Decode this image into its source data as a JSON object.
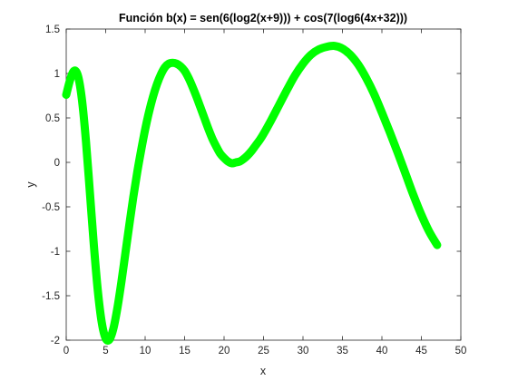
{
  "chart_data": {
    "type": "line",
    "title": "Función b(x) = sen(6(log2(x+9))) + cos(7(log6(4x+32)))",
    "xlabel": "x",
    "ylabel": "y",
    "xlim": [
      0,
      50
    ],
    "ylim": [
      -2,
      1.5
    ],
    "xticks": [
      "0",
      "5",
      "10",
      "15",
      "20",
      "25",
      "30",
      "35",
      "40",
      "45",
      "50"
    ],
    "yticks": [
      "-2",
      "-1.5",
      "-1",
      "-0.5",
      "0",
      "0.5",
      "1",
      "1.5"
    ],
    "grid": false,
    "series": [
      {
        "color": "#00ff00",
        "x": [
          0,
          0.5,
          1,
          1.5,
          2,
          2.5,
          3,
          3.5,
          4,
          4.5,
          5,
          5.5,
          6,
          6.5,
          7,
          7.5,
          8,
          8.5,
          9,
          9.5,
          10,
          10.5,
          11,
          11.5,
          12,
          12.5,
          13,
          13.5,
          14,
          14.5,
          15,
          15.5,
          16,
          16.5,
          17,
          17.5,
          18,
          18.5,
          19,
          19.5,
          20,
          20.5,
          21,
          21.5,
          22,
          22.5,
          23,
          23.5,
          24,
          24.5,
          25,
          26,
          27,
          28,
          29,
          30,
          31,
          32,
          33,
          34,
          35,
          36,
          37,
          38,
          39,
          40,
          41,
          42,
          43,
          44,
          45,
          46,
          47
        ],
        "y": [
          0.76,
          0.93,
          1.03,
          0.97,
          0.7,
          0.24,
          -0.34,
          -0.93,
          -1.44,
          -1.8,
          -1.98,
          -1.99,
          -1.86,
          -1.63,
          -1.34,
          -1.02,
          -0.7,
          -0.39,
          -0.11,
          0.14,
          0.37,
          0.57,
          0.74,
          0.88,
          0.99,
          1.07,
          1.11,
          1.12,
          1.11,
          1.08,
          1.03,
          0.95,
          0.85,
          0.74,
          0.62,
          0.5,
          0.38,
          0.27,
          0.18,
          0.1,
          0.05,
          0.01,
          -0.01,
          0,
          0.01,
          0.04,
          0.08,
          0.13,
          0.19,
          0.25,
          0.32,
          0.48,
          0.65,
          0.82,
          0.98,
          1.11,
          1.21,
          1.27,
          1.3,
          1.31,
          1.28,
          1.21,
          1.1,
          0.95,
          0.77,
          0.56,
          0.34,
          0.11,
          -0.13,
          -0.37,
          -0.59,
          -0.78,
          -0.93
        ]
      }
    ]
  }
}
